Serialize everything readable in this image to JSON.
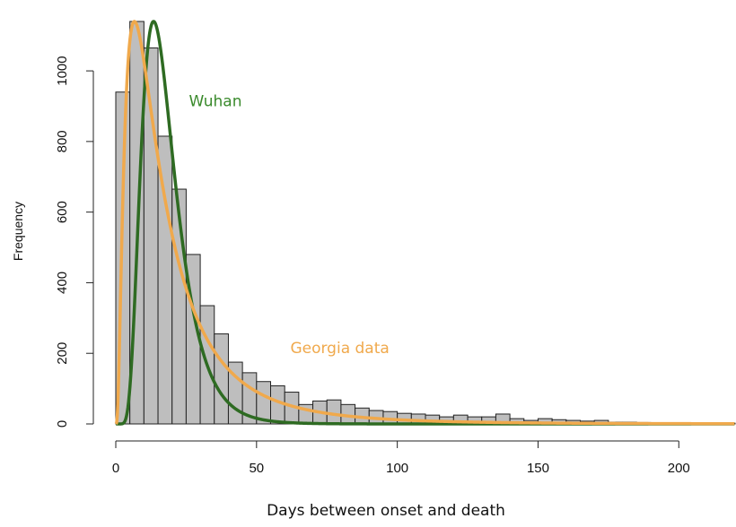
{
  "chart_data": {
    "type": "bar",
    "title": "",
    "xlabel": "Days between onset and death",
    "ylabel": "Frequency",
    "xlim": [
      0,
      220
    ],
    "ylim": [
      0,
      1150
    ],
    "xticks": [
      0,
      50,
      100,
      150,
      200
    ],
    "yticks": [
      0,
      200,
      400,
      600,
      800,
      1000
    ],
    "bin_width": 5,
    "bin_starts": [
      0,
      5,
      10,
      15,
      20,
      25,
      30,
      35,
      40,
      45,
      50,
      55,
      60,
      65,
      70,
      75,
      80,
      85,
      90,
      95,
      100,
      105,
      110,
      115,
      120,
      125,
      130,
      135,
      140,
      145,
      150,
      155,
      160,
      165,
      170,
      175,
      180,
      185,
      190,
      195,
      200,
      205,
      210,
      215
    ],
    "values": [
      940,
      1140,
      1065,
      815,
      665,
      480,
      335,
      255,
      175,
      145,
      120,
      108,
      90,
      55,
      65,
      68,
      55,
      45,
      38,
      35,
      30,
      28,
      25,
      20,
      25,
      20,
      20,
      28,
      15,
      10,
      15,
      12,
      10,
      8,
      10,
      5,
      5,
      4,
      3,
      3,
      3,
      2,
      2,
      2
    ],
    "bar_color": "#bebebe",
    "bar_edge_color": "#222222",
    "curves": [
      {
        "name": "Wuhan",
        "color": "#2e6b22",
        "distribution": "lognormal",
        "meanlog": 2.8,
        "sdlog": 0.45,
        "peak": 1140
      },
      {
        "name": "Georgia data",
        "color": "#f0a94c",
        "distribution": "lognormal",
        "meanlog": 2.7,
        "sdlog": 0.9,
        "peak": 1140
      }
    ],
    "annotations": [
      {
        "text": "Wuhan",
        "color": "#3a8a2c",
        "x": 26,
        "y": 900
      },
      {
        "text": "Georgia data",
        "color": "#f0a94c",
        "x": 62,
        "y": 200
      }
    ]
  }
}
